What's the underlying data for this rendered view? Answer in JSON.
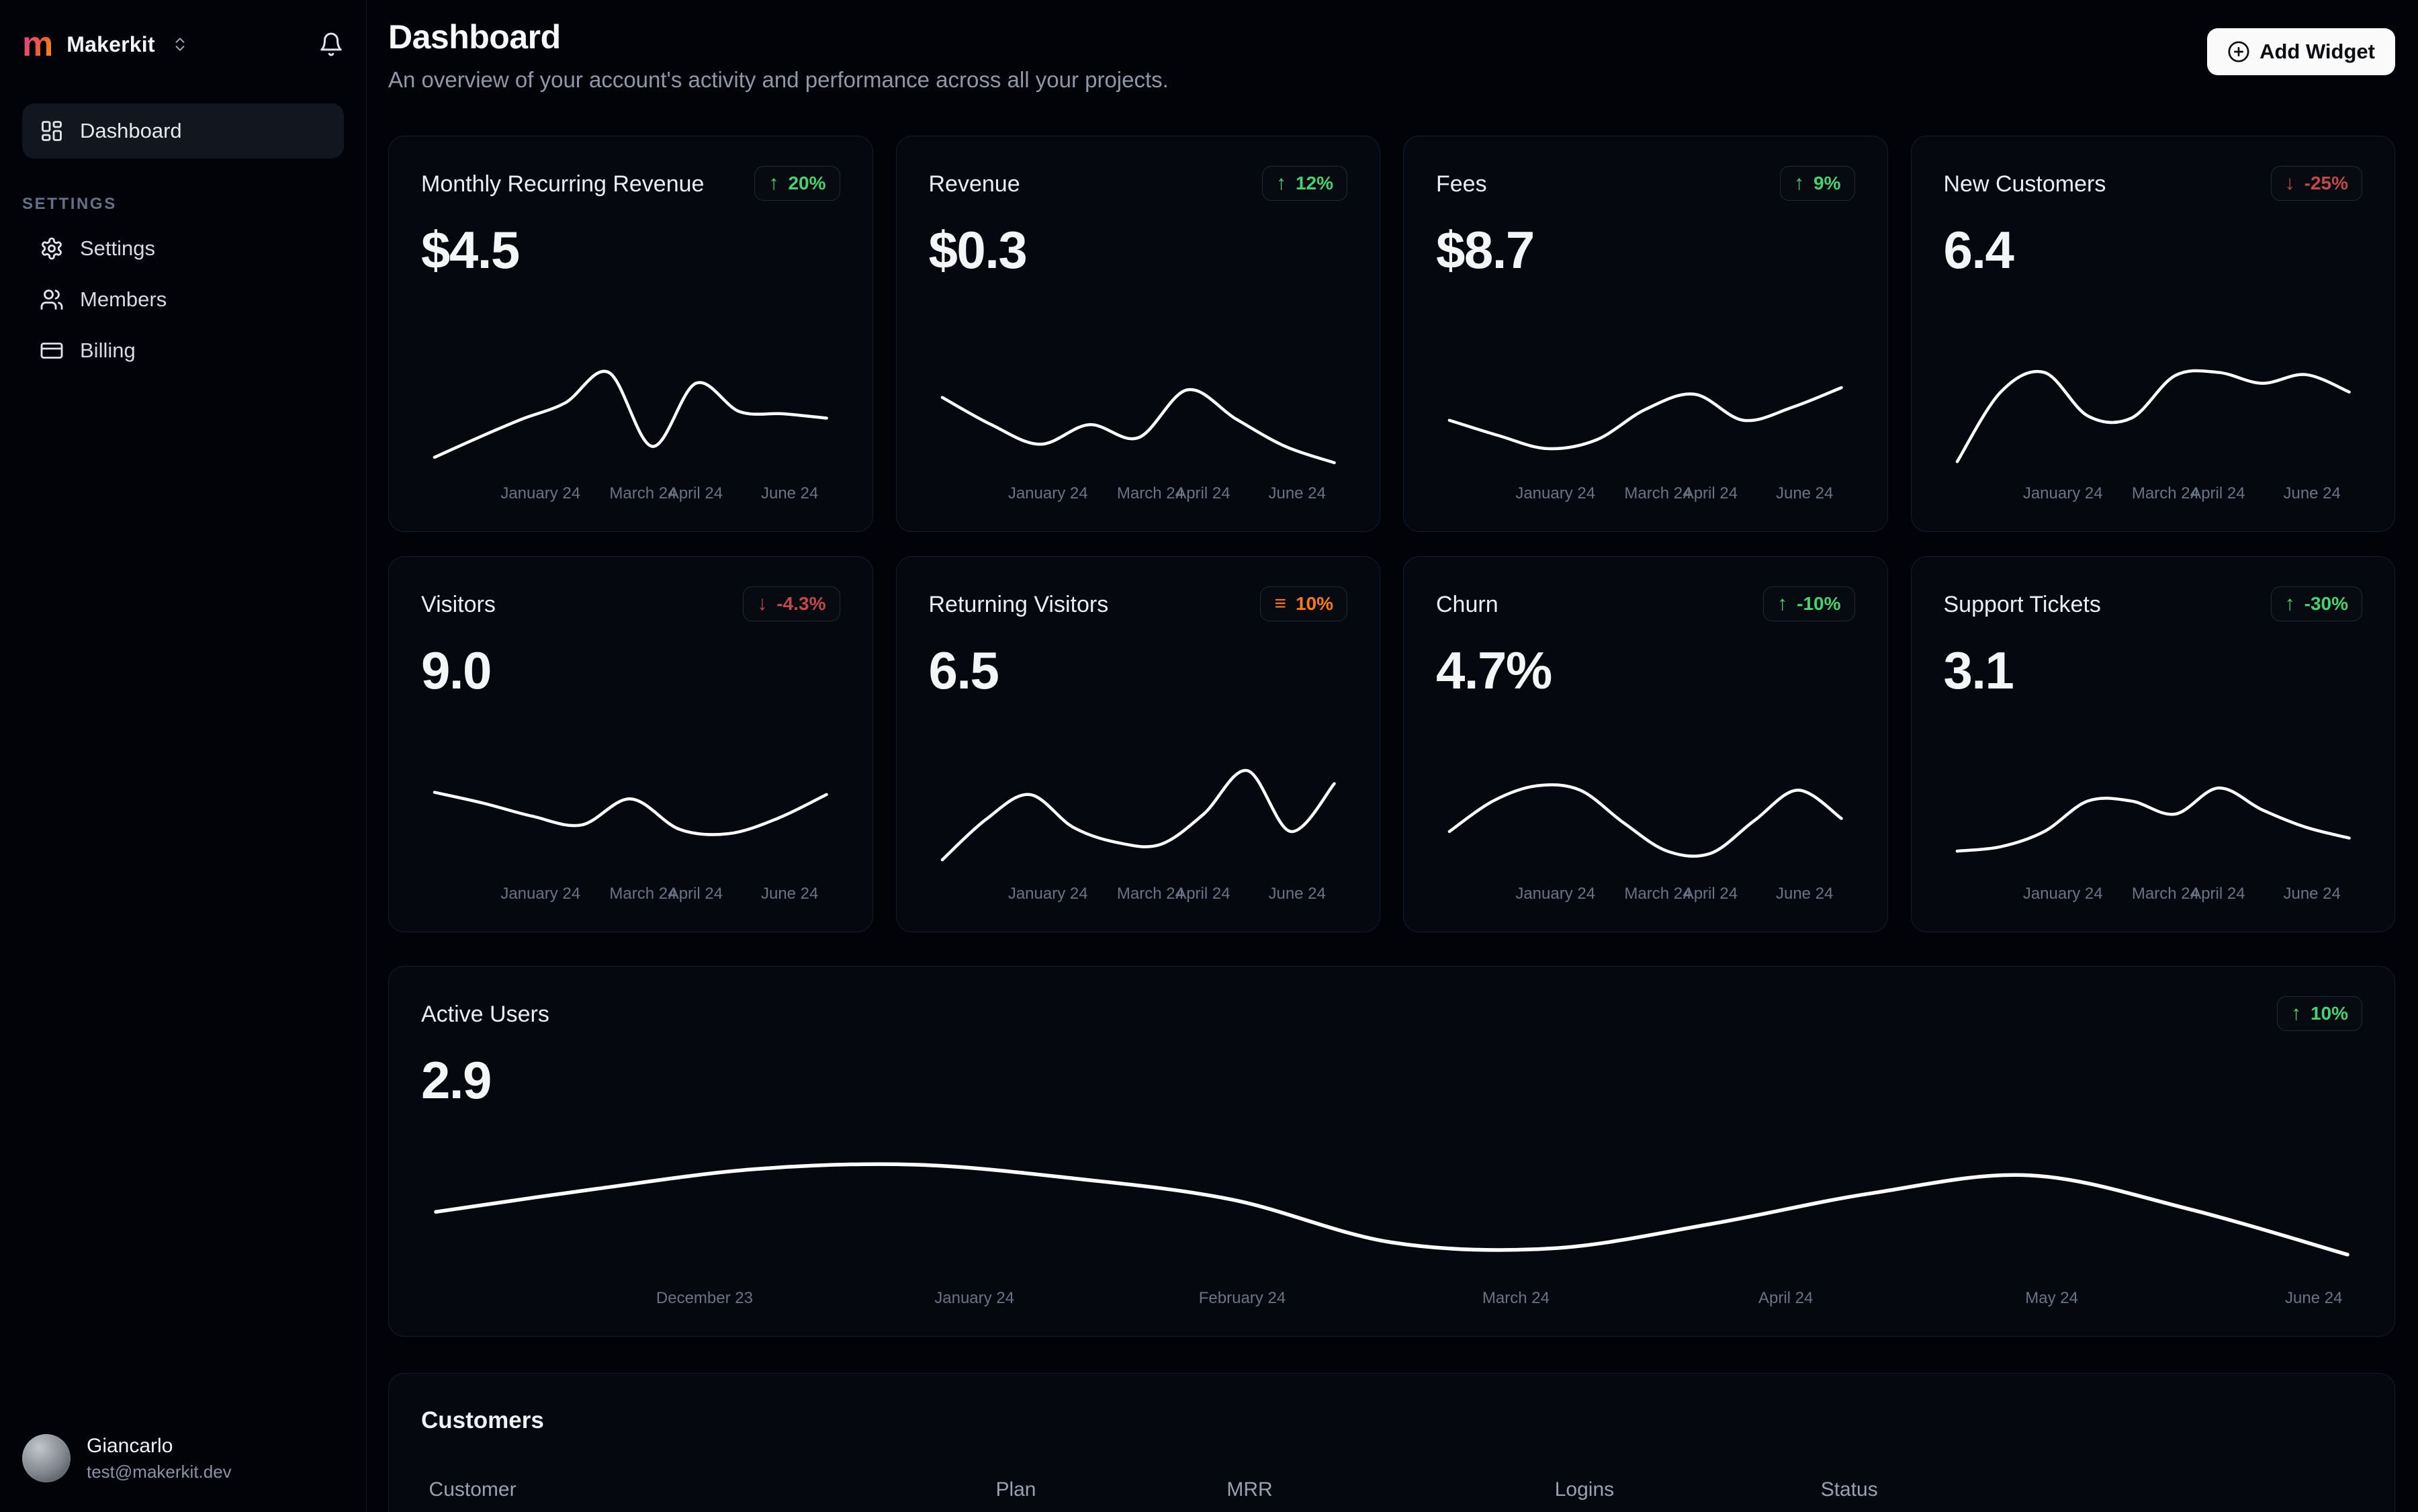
{
  "theme": {
    "positive": "#48d171",
    "negative": "#c24949",
    "neutral": "#f9791c",
    "line": "#ffffff"
  },
  "sidebar": {
    "brand": "Makerkit",
    "nav": [
      {
        "label": "Dashboard"
      }
    ],
    "section_label": "SETTINGS",
    "settings_nav": [
      {
        "label": "Settings"
      },
      {
        "label": "Members"
      },
      {
        "label": "Billing"
      }
    ],
    "user": {
      "name": "Giancarlo",
      "email": "test@makerkit.dev"
    }
  },
  "header": {
    "title": "Dashboard",
    "subtitle": "An overview of your account's activity and performance across all your projects.",
    "add_widget": "Add Widget"
  },
  "small_axis": [
    {
      "t": "January 24",
      "x": 28.5
    },
    {
      "t": "March 24",
      "x": 53
    },
    {
      "t": "April 24",
      "x": 65.5
    },
    {
      "t": "June 24",
      "x": 88
    }
  ],
  "cards": [
    {
      "title": "Monthly Recurring Revenue",
      "value": "$4.5",
      "badge": {
        "icon": "↑",
        "label": "20%",
        "color": "#48d171"
      },
      "chart": {
        "type": "line",
        "values": [
          10,
          28,
          45,
          60,
          88,
          20,
          78,
          52,
          50,
          46
        ]
      }
    },
    {
      "title": "Revenue",
      "value": "$0.3",
      "badge": {
        "icon": "↑",
        "label": "12%",
        "color": "#48d171"
      },
      "chart": {
        "type": "line",
        "values": [
          65,
          40,
          22,
          40,
          28,
          72,
          45,
          20,
          5
        ]
      }
    },
    {
      "title": "Fees",
      "value": "$8.7",
      "badge": {
        "icon": "↑",
        "label": "9%",
        "color": "#48d171"
      },
      "chart": {
        "type": "line",
        "values": [
          44,
          30,
          18,
          26,
          54,
          68,
          44,
          56,
          74
        ]
      }
    },
    {
      "title": "New Customers",
      "value": "6.4",
      "badge": {
        "icon": "↓",
        "label": "-25%",
        "color": "#c24949"
      },
      "chart": {
        "type": "line",
        "values": [
          6,
          70,
          88,
          48,
          46,
          85,
          88,
          78,
          86,
          70
        ]
      }
    },
    {
      "title": "Visitors",
      "value": "9.0",
      "badge": {
        "icon": "↓",
        "label": "-4.3%",
        "color": "#c24949"
      },
      "chart": {
        "type": "line",
        "values": [
          70,
          60,
          48,
          40,
          64,
          36,
          32,
          46,
          68
        ]
      }
    },
    {
      "title": "Returning Visitors",
      "value": "6.5",
      "badge": {
        "icon": "≡",
        "label": "10%",
        "color": "#f9791c"
      },
      "chart": {
        "type": "line",
        "values": [
          8,
          45,
          68,
          38,
          24,
          22,
          50,
          90,
          34,
          78
        ]
      }
    },
    {
      "title": "Churn",
      "value": "4.7%",
      "badge": {
        "icon": "↑",
        "label": "-10%",
        "color": "#48d171"
      },
      "chart": {
        "type": "line",
        "values": [
          34,
          62,
          76,
          72,
          42,
          16,
          14,
          44,
          72,
          46
        ]
      }
    },
    {
      "title": "Support Tickets",
      "value": "3.1",
      "badge": {
        "icon": "↑",
        "label": "-30%",
        "color": "#48d171"
      },
      "chart": {
        "type": "line",
        "values": [
          16,
          20,
          34,
          62,
          62,
          50,
          74,
          54,
          38,
          28
        ]
      }
    }
  ],
  "active_users": {
    "title": "Active Users",
    "value": "2.9",
    "badge": {
      "icon": "↑",
      "label": "10%",
      "color": "#48d171"
    },
    "chart": {
      "type": "line",
      "values": [
        40,
        55,
        68,
        71,
        62,
        48,
        20,
        16,
        32,
        52,
        64,
        42,
        12
      ]
    },
    "axis": [
      {
        "t": "December 23",
        "x": 14.6
      },
      {
        "t": "January 24",
        "x": 28.5
      },
      {
        "t": "February 24",
        "x": 42.3
      },
      {
        "t": "March 24",
        "x": 56.4
      },
      {
        "t": "April 24",
        "x": 70.3
      },
      {
        "t": "May 24",
        "x": 84.0
      },
      {
        "t": "June 24",
        "x": 97.5
      }
    ]
  },
  "customers": {
    "title": "Customers",
    "columns": [
      "Customer",
      "Plan",
      "MRR",
      "Logins",
      "Status"
    ]
  }
}
